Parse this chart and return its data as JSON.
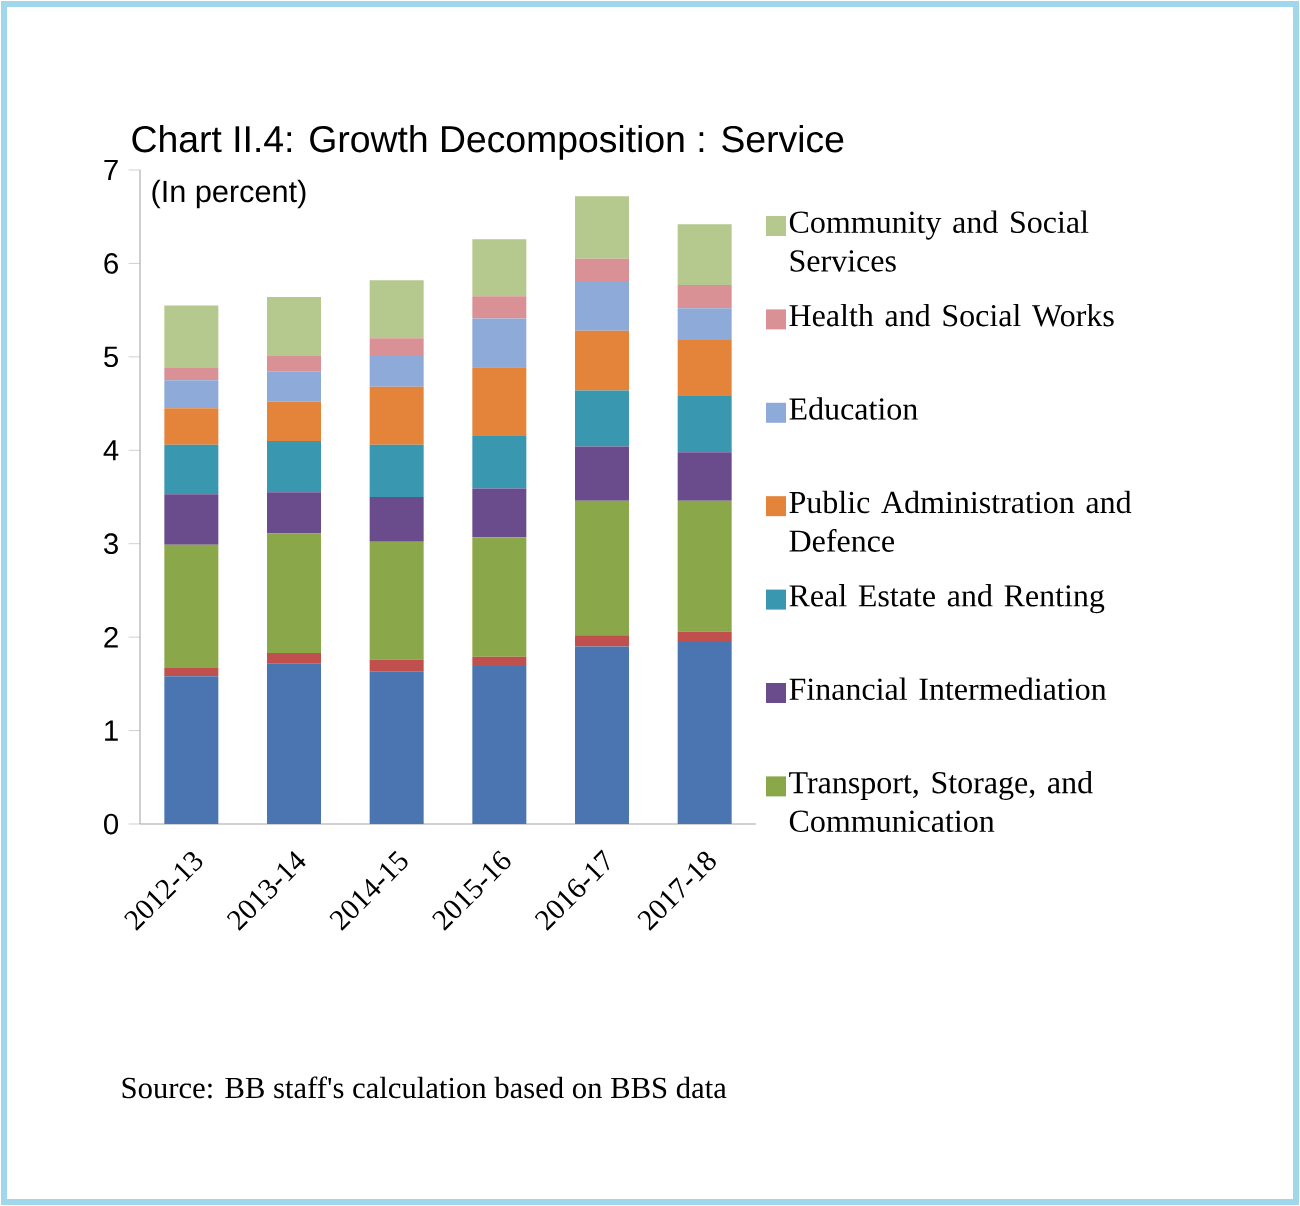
{
  "chart_data": {
    "type": "bar",
    "stacked": true,
    "title": "Chart II.4: Growth Decomposition : Service",
    "subtitle": "(In percent)",
    "categories": [
      "2012-13",
      "2013-14",
      "2014-15",
      "2015-16",
      "2016-17",
      "2017-18"
    ],
    "series": [
      {
        "color": "#4a75b0",
        "values": [
          1.58,
          1.72,
          1.63,
          1.69,
          1.9,
          1.96
        ]
      },
      {
        "color": "#c0504d",
        "values": [
          0.09,
          0.11,
          0.13,
          0.1,
          0.12,
          0.1
        ]
      },
      {
        "name": "Transport, Storage, and Communication",
        "color": "#8aa84a",
        "values": [
          1.32,
          1.28,
          1.26,
          1.28,
          1.44,
          1.4
        ]
      },
      {
        "name": "Financial Intermediation",
        "color": "#6a4c8c",
        "values": [
          0.54,
          0.44,
          0.48,
          0.52,
          0.58,
          0.52
        ]
      },
      {
        "name": "Real Estate and Renting",
        "color": "#3a97b0",
        "values": [
          0.53,
          0.55,
          0.56,
          0.57,
          0.6,
          0.6
        ]
      },
      {
        "name": "Public Administration and Defence",
        "color": "#e4843a",
        "values": [
          0.39,
          0.42,
          0.62,
          0.73,
          0.64,
          0.6
        ]
      },
      {
        "name": "Education",
        "color": "#8eaad8",
        "values": [
          0.3,
          0.32,
          0.34,
          0.52,
          0.52,
          0.34
        ]
      },
      {
        "name": "Health and Social Works",
        "color": "#d99195",
        "values": [
          0.13,
          0.17,
          0.18,
          0.24,
          0.25,
          0.25
        ]
      },
      {
        "name": "Community and Social Services",
        "color": "#b5c98e",
        "values": [
          0.67,
          0.63,
          0.62,
          0.61,
          0.67,
          0.65
        ]
      }
    ],
    "ylim": [
      0,
      7
    ],
    "yticks": [
      0,
      1,
      2,
      3,
      4,
      5,
      6,
      7
    ],
    "legend": "right",
    "annotations": [
      "Source: BB staff's calculation based on BBS data"
    ]
  }
}
